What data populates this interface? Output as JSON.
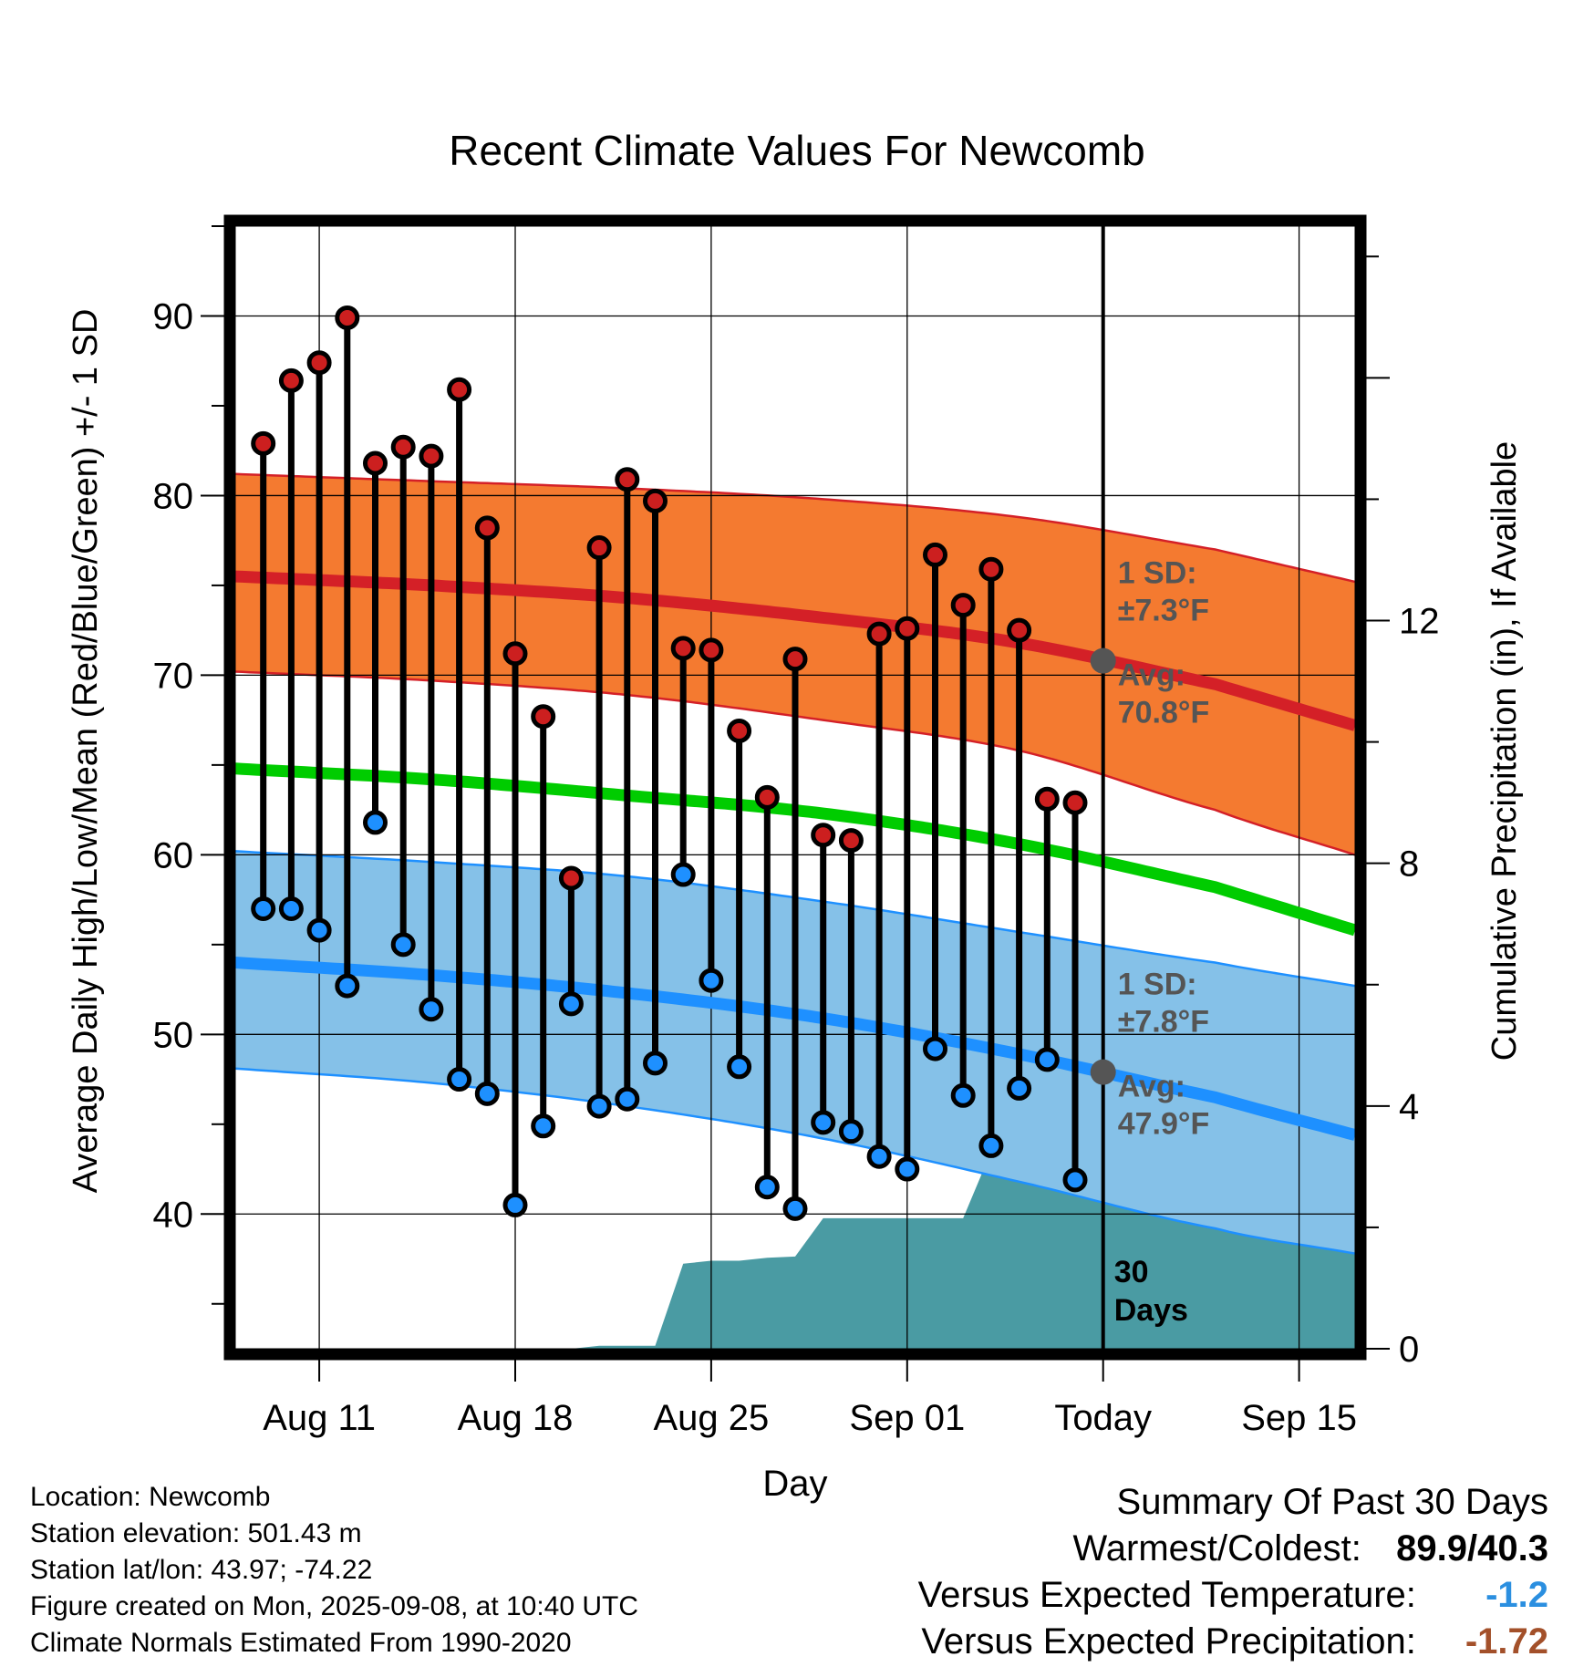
{
  "title": "Recent Climate Values For Newcomb",
  "colors": {
    "high_band": "#f47a30",
    "high_line": "#d42027",
    "low_band": "#85c1e8",
    "low_line": "#1e90ff",
    "mean_line": "#00cc00",
    "precip": "#4a9ba3",
    "annotation": "#555555",
    "high_dot": "#cc1f1f",
    "low_dot": "#1e90ff"
  },
  "chart_data": {
    "type": "line",
    "title": "Recent Climate Values For Newcomb",
    "xlabel": "Day",
    "ylabel": "Average Daily High/Low/Mean (Red/Blue/Green) +/- 1 SD",
    "y2label": "Cumulative Precipitation (in), If Available",
    "xlim": [
      "2025-08-08",
      "2025-09-17"
    ],
    "ylim": [
      32.5,
      95
    ],
    "y2lim": [
      0,
      18.5
    ],
    "yticks": [
      40,
      50,
      60,
      70,
      80,
      90
    ],
    "y2ticks": [
      0,
      4,
      8,
      12
    ],
    "xticks": [
      {
        "date": "2025-08-11",
        "label": "Aug 11"
      },
      {
        "date": "2025-08-18",
        "label": "Aug 18"
      },
      {
        "date": "2025-08-25",
        "label": "Aug 25"
      },
      {
        "date": "2025-09-01",
        "label": "Sep 01"
      },
      {
        "date": "2025-09-08",
        "label": "Today"
      },
      {
        "date": "2025-09-15",
        "label": "Sep 15"
      }
    ],
    "grid": true,
    "today": "2025-09-08",
    "normals": {
      "dates": [
        "2025-08-08",
        "2025-08-15",
        "2025-08-22",
        "2025-08-29",
        "2025-09-05",
        "2025-09-12",
        "2025-09-17"
      ],
      "high_mean": [
        75.5,
        75.0,
        74.3,
        73.2,
        71.8,
        69.5,
        67.2
      ],
      "high_sd_upper": [
        81.2,
        80.8,
        80.4,
        79.8,
        78.8,
        77.0,
        75.2
      ],
      "high_sd_lower": [
        70.2,
        69.7,
        68.9,
        67.5,
        65.8,
        62.5,
        60.0
      ],
      "mean": [
        64.8,
        64.2,
        63.3,
        62.3,
        60.6,
        58.2,
        55.8
      ],
      "low_mean": [
        54.0,
        53.3,
        52.3,
        50.9,
        48.9,
        46.5,
        44.4
      ],
      "low_sd_upper": [
        60.2,
        59.6,
        58.8,
        57.4,
        55.7,
        54.0,
        52.7
      ],
      "low_sd_lower": [
        48.1,
        47.3,
        46.0,
        44.2,
        41.8,
        39.2,
        37.8
      ]
    },
    "observed": {
      "dates": [
        "2025-08-09",
        "2025-08-10",
        "2025-08-11",
        "2025-08-12",
        "2025-08-13",
        "2025-08-14",
        "2025-08-15",
        "2025-08-16",
        "2025-08-17",
        "2025-08-18",
        "2025-08-19",
        "2025-08-20",
        "2025-08-21",
        "2025-08-22",
        "2025-08-23",
        "2025-08-24",
        "2025-08-25",
        "2025-08-26",
        "2025-08-27",
        "2025-08-28",
        "2025-08-29",
        "2025-08-30",
        "2025-08-31",
        "2025-09-01",
        "2025-09-02",
        "2025-09-03",
        "2025-09-04",
        "2025-09-05",
        "2025-09-06",
        "2025-09-07"
      ],
      "high": [
        82.9,
        86.4,
        87.4,
        89.9,
        81.8,
        82.7,
        82.2,
        85.9,
        78.2,
        71.2,
        67.7,
        58.7,
        77.1,
        80.9,
        79.7,
        71.5,
        71.4,
        66.9,
        63.2,
        70.9,
        61.1,
        60.8,
        72.3,
        72.6,
        76.7,
        73.9,
        75.9,
        72.5,
        63.1,
        62.9
      ],
      "low": [
        57.0,
        57.0,
        55.8,
        52.7,
        61.8,
        55.0,
        51.4,
        47.5,
        46.7,
        40.5,
        44.9,
        51.7,
        46.0,
        46.4,
        48.4,
        58.9,
        53.0,
        48.2,
        41.5,
        40.3,
        45.1,
        44.6,
        43.2,
        42.5,
        49.2,
        46.6,
        43.8,
        47.0,
        48.6,
        41.9
      ]
    },
    "precipitation": {
      "dates": [
        "2025-08-08",
        "2025-08-20",
        "2025-08-21",
        "2025-08-22",
        "2025-08-23",
        "2025-08-24",
        "2025-08-25",
        "2025-08-26",
        "2025-08-27",
        "2025-08-28",
        "2025-08-29",
        "2025-08-30",
        "2025-08-31",
        "2025-09-01",
        "2025-09-02",
        "2025-09-03",
        "2025-09-04",
        "2025-09-05",
        "2025-09-06",
        "2025-09-07",
        "2025-09-08",
        "2025-09-17"
      ],
      "cumulative": [
        0.0,
        0.0,
        0.05,
        0.05,
        0.05,
        1.4,
        1.45,
        1.45,
        1.5,
        1.52,
        2.15,
        2.15,
        2.15,
        2.15,
        2.15,
        2.15,
        3.25,
        3.25,
        3.85,
        3.85,
        3.85,
        3.85
      ]
    },
    "annotations": {
      "high_sd": [
        "1 SD:",
        "±7.3°F"
      ],
      "high_avg": [
        "Avg:",
        "70.8°F"
      ],
      "low_sd": [
        "1 SD:",
        "±7.8°F"
      ],
      "low_avg": [
        "Avg:",
        "47.9°F"
      ],
      "period": [
        "30",
        "Days"
      ]
    },
    "today_avg_high": 70.8,
    "today_avg_low": 47.9
  },
  "info": {
    "location": "Location: Newcomb",
    "elevation": "Station elevation: 501.43 m",
    "latlon": "Station lat/lon: 43.97; -74.22",
    "created": "Figure created on Mon, 2025-09-08, at 10:40 UTC",
    "normals": "Climate Normals Estimated From 1990-2020"
  },
  "summary": {
    "heading": "Summary Of Past 30 Days",
    "warm_cold_label": "Warmest/Coldest:",
    "warm_cold_value": "89.9/40.3",
    "temp_label": "Versus Expected Temperature:",
    "temp_value": "-1.2",
    "temp_color": "#2b8fe0",
    "precip_label": "Versus Expected Precipitation:",
    "precip_value": "-1.72",
    "precip_color": "#a3502a"
  }
}
